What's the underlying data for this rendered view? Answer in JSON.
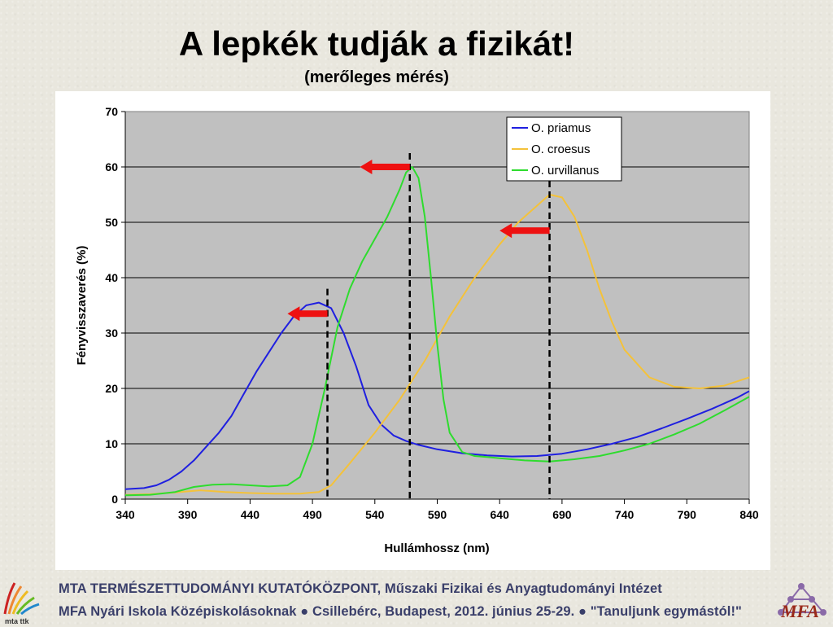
{
  "slide": {
    "title": "A lepkék tudják a fizikát!",
    "subtitle": "(merőleges mérés)"
  },
  "footer": {
    "line1": "MTA  TERMÉSZETTUDOMÁNYI  KUTATÓKÖZPONT, Műszaki Fizikai és Anyagtudományi Intézet",
    "line2": "MFA Nyári Iskola Középiskolásoknak ●  Csillebérc, Budapest, 2012. június 25-29.  ●  \"Tanuljunk egymástól!\"",
    "left_logo_text": "mta ttk",
    "right_logo_text": "MFA"
  },
  "colors": {
    "plot_bg": "#c0c0c0",
    "priamus": "#1f1fe0",
    "croesus": "#f4c23a",
    "urvillanus": "#2edc2e",
    "arrow": "#ee1111"
  },
  "chart_data": {
    "type": "line",
    "title": "",
    "xlabel": "Hullámhossz (nm)",
    "ylabel": "Fényvisszaverés (%)",
    "xlim": [
      340,
      840
    ],
    "ylim": [
      0,
      70
    ],
    "xticks": [
      340,
      390,
      440,
      490,
      540,
      590,
      640,
      690,
      740,
      790,
      840
    ],
    "yticks": [
      0,
      10,
      20,
      30,
      40,
      50,
      60,
      70
    ],
    "grid": "horizontal",
    "legend_position": "top-right",
    "series": [
      {
        "name": "O. priamus",
        "x": [
          340,
          355,
          365,
          375,
          385,
          395,
          405,
          415,
          425,
          435,
          445,
          455,
          465,
          475,
          485,
          495,
          505,
          515,
          525,
          535,
          545,
          555,
          565,
          575,
          590,
          610,
          630,
          650,
          670,
          690,
          710,
          730,
          750,
          770,
          790,
          810,
          830,
          840
        ],
        "y": [
          1.8,
          2,
          2.5,
          3.5,
          5,
          7,
          9.5,
          12,
          15,
          19,
          23,
          26.5,
          30,
          33,
          35,
          35.5,
          34.5,
          30,
          24,
          17,
          13.5,
          11.5,
          10.5,
          9.8,
          9,
          8.3,
          7.9,
          7.7,
          7.8,
          8.2,
          9,
          10,
          11.2,
          12.8,
          14.5,
          16.3,
          18.3,
          19.5
        ]
      },
      {
        "name": "O. croesus",
        "x": [
          340,
          360,
          380,
          400,
          420,
          440,
          460,
          480,
          495,
          505,
          520,
          540,
          560,
          580,
          600,
          620,
          640,
          655,
          665,
          675,
          680,
          690,
          700,
          710,
          720,
          730,
          740,
          760,
          780,
          800,
          820,
          840
        ],
        "y": [
          0.8,
          0.9,
          1.2,
          1.6,
          1.3,
          1.1,
          1.0,
          1.0,
          1.3,
          2.5,
          6.5,
          12,
          18,
          25,
          33,
          40,
          46,
          50,
          52,
          54,
          55,
          54.5,
          51,
          45,
          38,
          32,
          27,
          22,
          20.3,
          20,
          20.5,
          22
        ]
      },
      {
        "name": "O. urvillanus",
        "x": [
          340,
          360,
          380,
          395,
          410,
          425,
          440,
          455,
          470,
          480,
          490,
          500,
          510,
          520,
          530,
          540,
          550,
          560,
          565,
          570,
          575,
          580,
          585,
          590,
          595,
          600,
          610,
          620,
          630,
          640,
          660,
          680,
          700,
          720,
          740,
          760,
          780,
          800,
          820,
          840
        ],
        "y": [
          0.7,
          0.8,
          1.3,
          2.2,
          2.6,
          2.7,
          2.5,
          2.3,
          2.5,
          4,
          10,
          20,
          31,
          38,
          43,
          47,
          51,
          56,
          59,
          60,
          58,
          51,
          40,
          28,
          18,
          12,
          8.5,
          7.8,
          7.6,
          7.4,
          7.0,
          6.8,
          7.2,
          7.8,
          8.8,
          10,
          11.7,
          13.6,
          16,
          18.5
        ]
      }
    ],
    "annotations": {
      "dashed_lines_x": [
        502,
        568,
        680
      ],
      "arrows": [
        {
          "x_from": 502,
          "x_to": 470,
          "y": 33.5
        },
        {
          "x_from": 568,
          "x_to": 528,
          "y": 60
        },
        {
          "x_from": 680,
          "x_to": 640,
          "y": 48.5
        }
      ]
    }
  }
}
